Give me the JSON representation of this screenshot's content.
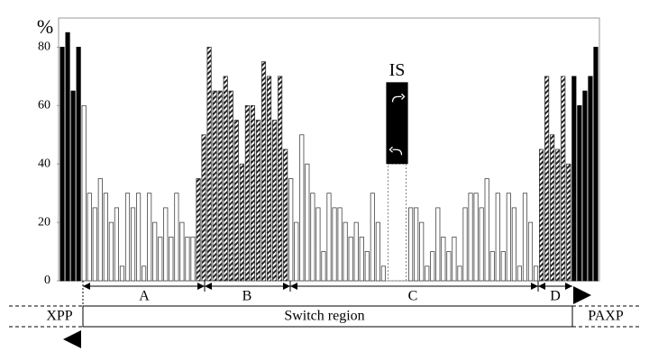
{
  "chart_data": {
    "type": "bar",
    "y_label": "%",
    "ylim": [
      0,
      90
    ],
    "yticks": [
      0,
      20,
      40,
      60,
      80
    ],
    "groups": [
      {
        "style": "black",
        "values": [
          80,
          85,
          65,
          80
        ]
      },
      {
        "style": "white",
        "values": [
          60,
          30,
          25,
          35,
          30,
          20,
          25,
          5,
          30,
          25,
          30,
          5,
          30,
          20,
          15,
          25,
          15,
          30,
          20,
          15,
          15
        ]
      },
      {
        "style": "hatched",
        "values": [
          35,
          50,
          80,
          65,
          65,
          70,
          65,
          55,
          40,
          60,
          60,
          55,
          75,
          70,
          55,
          70,
          45
        ]
      },
      {
        "style": "white",
        "values": [
          35,
          20,
          50,
          40,
          30,
          25,
          10,
          30,
          25,
          25,
          20,
          15,
          20,
          15,
          10,
          30,
          20,
          5
        ]
      },
      {
        "style": "is",
        "label": "IS",
        "range": [
          40,
          68
        ]
      },
      {
        "style": "white",
        "values": [
          25,
          25,
          20,
          5,
          10,
          25,
          15,
          10,
          15,
          5,
          25,
          30,
          30,
          25,
          35,
          10,
          30,
          10,
          30,
          25,
          5,
          30,
          20,
          5
        ]
      },
      {
        "style": "hatched",
        "values": [
          45,
          70,
          50,
          45,
          70,
          40
        ]
      },
      {
        "style": "black",
        "values": [
          70,
          60,
          65,
          70,
          80
        ]
      }
    ],
    "regions": [
      "A",
      "B",
      "C",
      "D"
    ],
    "bands": [
      "XPP",
      "Switch region",
      "PAXP"
    ]
  }
}
